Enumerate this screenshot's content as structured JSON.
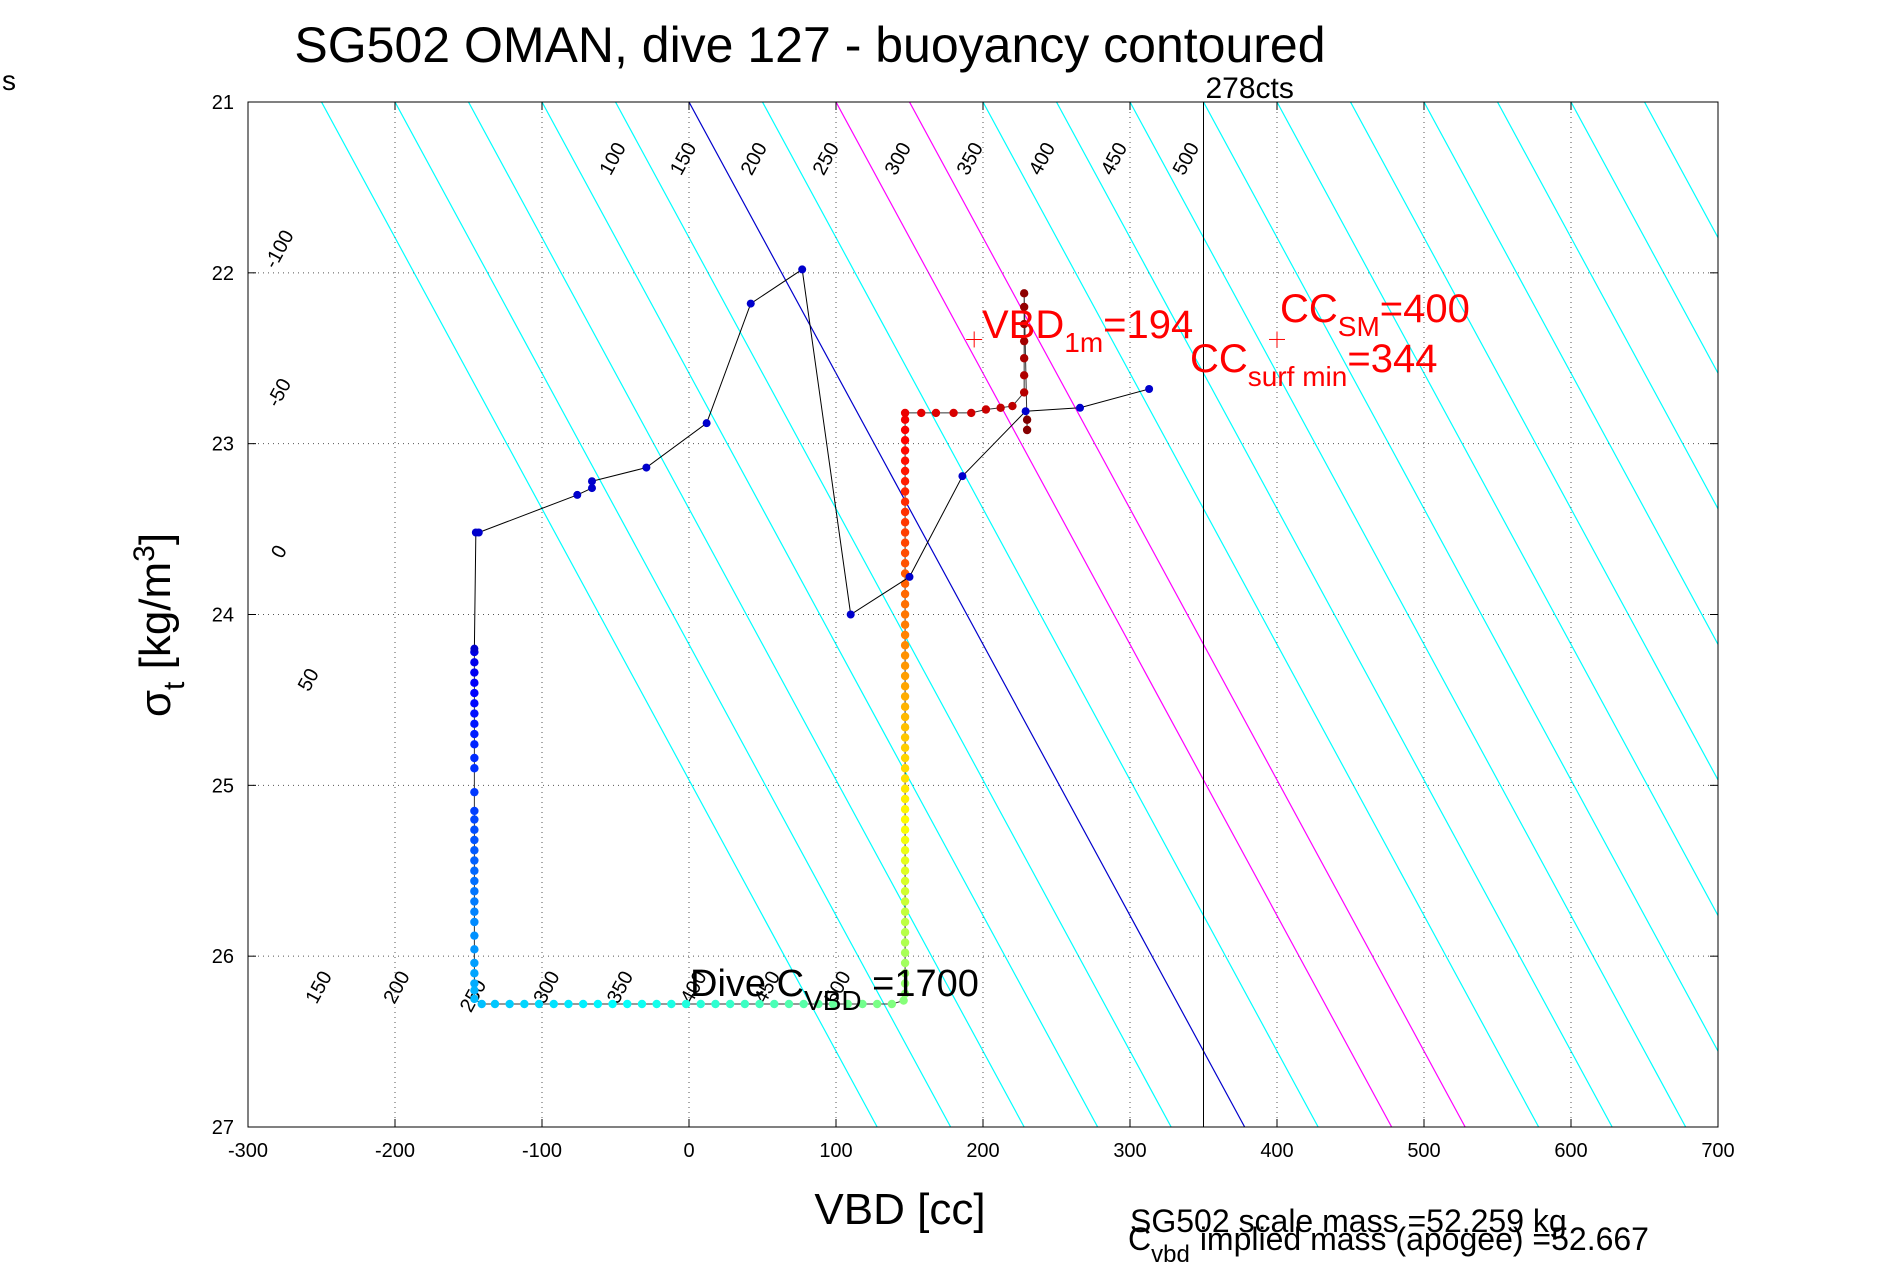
{
  "corner_text": "s",
  "chart_data": {
    "type": "scatter",
    "title": "SG502 OMAN, dive 127 - buoyancy contoured",
    "xlabel": "VBD [cc]",
    "ylabel_main": "σ",
    "ylabel_sub": "t",
    "ylabel_rest": " [kg/m",
    "ylabel_sup": "3",
    "ylabel_close": "]",
    "xlim": [
      -300,
      700
    ],
    "ylim": [
      21,
      27
    ],
    "y_reversed": true,
    "grid": true,
    "x_ticks": [
      -300,
      -200,
      -100,
      0,
      100,
      200,
      300,
      400,
      500,
      600,
      700
    ],
    "y_ticks": [
      21,
      22,
      23,
      24,
      25,
      26,
      27
    ],
    "vertical_line": {
      "x": 350,
      "label": "278cts"
    },
    "contours": {
      "slope_cc_per_sigma": 63,
      "lines": [
        {
          "v": -250,
          "color": "#00ffff"
        },
        {
          "v": -200,
          "color": "#00ffff"
        },
        {
          "v": -150,
          "color": "#00ffff"
        },
        {
          "v": -100,
          "color": "#00ffff"
        },
        {
          "v": -50,
          "color": "#00ffff"
        },
        {
          "v": 0,
          "color": "#0000cc"
        },
        {
          "v": 50,
          "color": "#00ffff"
        },
        {
          "v": 100,
          "color": "#ff00ff"
        },
        {
          "v": 150,
          "color": "#ff00ff"
        },
        {
          "v": 200,
          "color": "#00ffff"
        },
        {
          "v": 250,
          "color": "#00ffff"
        },
        {
          "v": 300,
          "color": "#00ffff"
        },
        {
          "v": 350,
          "color": "#00ffff"
        },
        {
          "v": 400,
          "color": "#00ffff"
        },
        {
          "v": 450,
          "color": "#00ffff"
        },
        {
          "v": 500,
          "color": "#00ffff"
        },
        {
          "v": 550,
          "color": "#00ffff"
        },
        {
          "v": 600,
          "color": "#00ffff"
        },
        {
          "v": 650,
          "color": "#00ffff"
        }
      ],
      "labels": [
        {
          "text": "-100",
          "x": -275,
          "y": 21.88
        },
        {
          "text": "-50",
          "x": -275,
          "y": 22.72
        },
        {
          "text": "0",
          "x": -275,
          "y": 23.65
        },
        {
          "text": "50",
          "x": -255,
          "y": 24.4
        },
        {
          "text": "100",
          "x": -48,
          "y": 21.35
        },
        {
          "text": "150",
          "x": 0,
          "y": 21.35
        },
        {
          "text": "200",
          "x": 48,
          "y": 21.35
        },
        {
          "text": "250",
          "x": 97,
          "y": 21.35
        },
        {
          "text": "300",
          "x": 146,
          "y": 21.35
        },
        {
          "text": "350",
          "x": 195,
          "y": 21.35
        },
        {
          "text": "400",
          "x": 244,
          "y": 21.35
        },
        {
          "text": "450",
          "x": 293,
          "y": 21.35
        },
        {
          "text": "500",
          "x": 342,
          "y": 21.35
        },
        {
          "text": "150",
          "x": -248,
          "y": 26.2
        },
        {
          "text": "200",
          "x": -195,
          "y": 26.2
        },
        {
          "text": "250",
          "x": -143,
          "y": 26.25
        },
        {
          "text": "300",
          "x": -93,
          "y": 26.2
        },
        {
          "text": "350",
          "x": -43,
          "y": 26.2
        },
        {
          "text": "400",
          "x": 7,
          "y": 26.2
        },
        {
          "text": "450",
          "x": 57,
          "y": 26.2
        },
        {
          "text": "500",
          "x": 105,
          "y": 26.2
        }
      ]
    },
    "descent_series": {
      "line_color": "#000000",
      "marker_color": "#0000cc",
      "points": [
        [
          313,
          22.68
        ],
        [
          266,
          22.79
        ],
        [
          229,
          22.81
        ],
        [
          186,
          23.19
        ],
        [
          150,
          23.78
        ],
        [
          110,
          24.0
        ],
        [
          77,
          21.98
        ],
        [
          42,
          22.18
        ],
        [
          12,
          22.88
        ],
        [
          -29,
          23.14
        ],
        [
          -66,
          23.22
        ],
        [
          -66,
          23.26
        ],
        [
          -76,
          23.3
        ],
        [
          -143,
          23.52
        ],
        [
          -145,
          23.52
        ],
        [
          -146,
          24.2
        ]
      ]
    },
    "colored_series": {
      "colormap": "jet",
      "points": [
        [
          -146,
          24.22
        ],
        [
          -146,
          24.28
        ],
        [
          -146,
          24.34
        ],
        [
          -146,
          24.4
        ],
        [
          -146,
          24.46
        ],
        [
          -146,
          24.52
        ],
        [
          -146,
          24.58
        ],
        [
          -146,
          24.64
        ],
        [
          -146,
          24.7
        ],
        [
          -146,
          24.76
        ],
        [
          -146,
          24.84
        ],
        [
          -146,
          24.9
        ],
        [
          -146,
          25.04
        ],
        [
          -146,
          25.15
        ],
        [
          -146,
          25.2
        ],
        [
          -146,
          25.26
        ],
        [
          -146,
          25.32
        ],
        [
          -146,
          25.38
        ],
        [
          -146,
          25.44
        ],
        [
          -146,
          25.5
        ],
        [
          -146,
          25.56
        ],
        [
          -146,
          25.62
        ],
        [
          -146,
          25.68
        ],
        [
          -146,
          25.74
        ],
        [
          -146,
          25.8
        ],
        [
          -146,
          25.88
        ],
        [
          -146,
          25.96
        ],
        [
          -146,
          26.04
        ],
        [
          -146,
          26.1
        ],
        [
          -146,
          26.16
        ],
        [
          -146,
          26.2
        ],
        [
          -146,
          26.25
        ],
        [
          -141,
          26.28
        ],
        [
          -132,
          26.28
        ],
        [
          -122,
          26.28
        ],
        [
          -112,
          26.28
        ],
        [
          -102,
          26.28
        ],
        [
          -92,
          26.28
        ],
        [
          -82,
          26.28
        ],
        [
          -72,
          26.28
        ],
        [
          -62,
          26.28
        ],
        [
          -52,
          26.28
        ],
        [
          -42,
          26.28
        ],
        [
          -32,
          26.28
        ],
        [
          -22,
          26.28
        ],
        [
          -12,
          26.28
        ],
        [
          -2,
          26.28
        ],
        [
          8,
          26.28
        ],
        [
          18,
          26.28
        ],
        [
          28,
          26.28
        ],
        [
          38,
          26.28
        ],
        [
          48,
          26.28
        ],
        [
          58,
          26.28
        ],
        [
          68,
          26.28
        ],
        [
          78,
          26.28
        ],
        [
          88,
          26.28
        ],
        [
          98,
          26.28
        ],
        [
          108,
          26.28
        ],
        [
          118,
          26.28
        ],
        [
          128,
          26.28
        ],
        [
          138,
          26.28
        ],
        [
          146,
          26.26
        ],
        [
          147,
          26.22
        ],
        [
          147,
          26.16
        ],
        [
          147,
          26.1
        ],
        [
          147,
          26.04
        ],
        [
          147,
          25.98
        ],
        [
          147,
          25.92
        ],
        [
          147,
          25.86
        ],
        [
          147,
          25.8
        ],
        [
          147,
          25.74
        ],
        [
          147,
          25.68
        ],
        [
          147,
          25.62
        ],
        [
          147,
          25.56
        ],
        [
          147,
          25.5
        ],
        [
          147,
          25.44
        ],
        [
          147,
          25.38
        ],
        [
          147,
          25.32
        ],
        [
          147,
          25.26
        ],
        [
          147,
          25.2
        ],
        [
          147,
          25.14
        ],
        [
          147,
          25.08
        ],
        [
          147,
          25.02
        ],
        [
          147,
          24.96
        ],
        [
          147,
          24.9
        ],
        [
          147,
          24.84
        ],
        [
          147,
          24.78
        ],
        [
          147,
          24.72
        ],
        [
          147,
          24.66
        ],
        [
          147,
          24.6
        ],
        [
          147,
          24.54
        ],
        [
          147,
          24.48
        ],
        [
          147,
          24.42
        ],
        [
          147,
          24.36
        ],
        [
          147,
          24.3
        ],
        [
          147,
          24.24
        ],
        [
          147,
          24.18
        ],
        [
          147,
          24.12
        ],
        [
          147,
          24.06
        ],
        [
          147,
          24.0
        ],
        [
          147,
          23.94
        ],
        [
          147,
          23.88
        ],
        [
          147,
          23.82
        ],
        [
          147,
          23.76
        ],
        [
          147,
          23.7
        ],
        [
          147,
          23.64
        ],
        [
          147,
          23.58
        ],
        [
          147,
          23.52
        ],
        [
          147,
          23.46
        ],
        [
          147,
          23.4
        ],
        [
          147,
          23.34
        ],
        [
          147,
          23.28
        ],
        [
          147,
          23.22
        ],
        [
          147,
          23.16
        ],
        [
          147,
          23.1
        ],
        [
          147,
          23.04
        ],
        [
          147,
          22.98
        ],
        [
          147,
          22.92
        ],
        [
          147,
          22.86
        ],
        [
          147,
          22.82
        ],
        [
          158,
          22.82
        ],
        [
          168,
          22.82
        ],
        [
          180,
          22.82
        ],
        [
          192,
          22.82
        ],
        [
          202,
          22.8
        ],
        [
          212,
          22.79
        ],
        [
          220,
          22.78
        ],
        [
          228,
          22.7
        ],
        [
          228,
          22.6
        ],
        [
          228,
          22.5
        ],
        [
          228,
          22.4
        ],
        [
          228,
          22.3
        ],
        [
          228,
          22.2
        ],
        [
          228,
          22.12
        ],
        [
          230,
          22.92
        ],
        [
          230,
          22.86
        ]
      ]
    },
    "annotations": [
      {
        "id": "vbd1m",
        "main": "VBD",
        "sub": "1m",
        "rest": "=194",
        "color": "#ff0000",
        "marker_x": 194,
        "marker_y": 22.39
      },
      {
        "id": "ccsm",
        "main": "CC",
        "sub": "SM",
        "rest": "=400",
        "color": "#ff0000",
        "marker_x": 400,
        "marker_y": 22.39
      },
      {
        "id": "ccsurfmin",
        "main": "CC",
        "sub": "surf min",
        "rest": "=344",
        "color": "#ff0000"
      },
      {
        "id": "dive",
        "main": "Dive C",
        "sub": "VBD",
        "rest": " =1700",
        "color": "#000000"
      }
    ],
    "footer_lines": [
      "SG502 scale mass =52.259 kg",
      "implied mass (apogee) =52.667"
    ],
    "footer_prefix_main": "C",
    "footer_prefix_sub": "vbd"
  }
}
